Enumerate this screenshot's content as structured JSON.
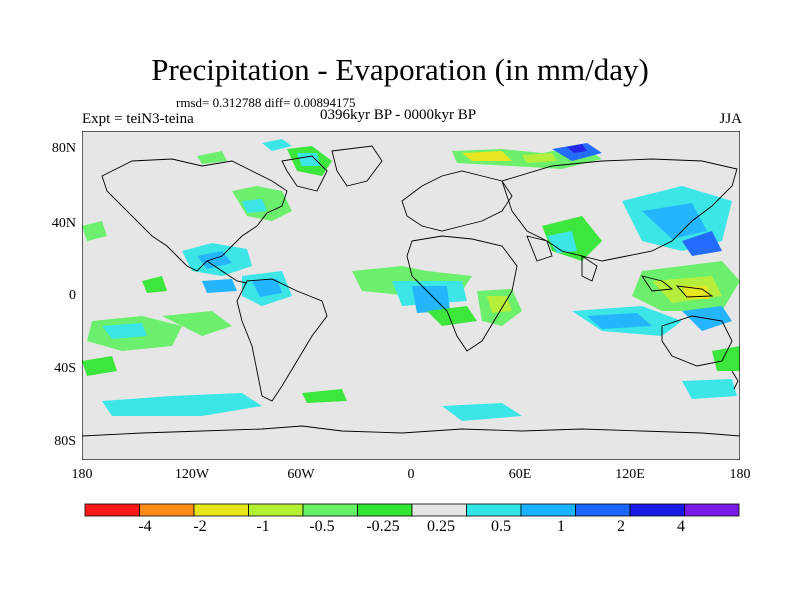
{
  "title": "Precipitation - Evaporation (in mm/day)",
  "stats": "rmsd= 0.312788 diff= 0.00894175",
  "experiment": "Expt = teiN3-teina",
  "period": "0396kyr BP - 0000kyr BP",
  "season": "JJA",
  "y_ticks": [
    "80N",
    "40N",
    "0",
    "40S",
    "80S"
  ],
  "x_ticks": [
    "180",
    "120W",
    "60W",
    "0",
    "60E",
    "120E",
    "180"
  ],
  "colorbar": {
    "labels": [
      "-4",
      "-2",
      "-1",
      "-0.5",
      "-0.25",
      "0.25",
      "0.5",
      "1",
      "2",
      "4"
    ],
    "colors": [
      "#ff1a1a",
      "#ff8c1a",
      "#e6e619",
      "#b3f033",
      "#66f066",
      "#33e633",
      "#e6e6e6",
      "#33e6e6",
      "#1ab3ff",
      "#1a66ff",
      "#1a1ae6",
      "#7a1ae6"
    ]
  },
  "colors": {
    "ocean_background": "#e6e6e6",
    "coastline": "#000000"
  }
}
